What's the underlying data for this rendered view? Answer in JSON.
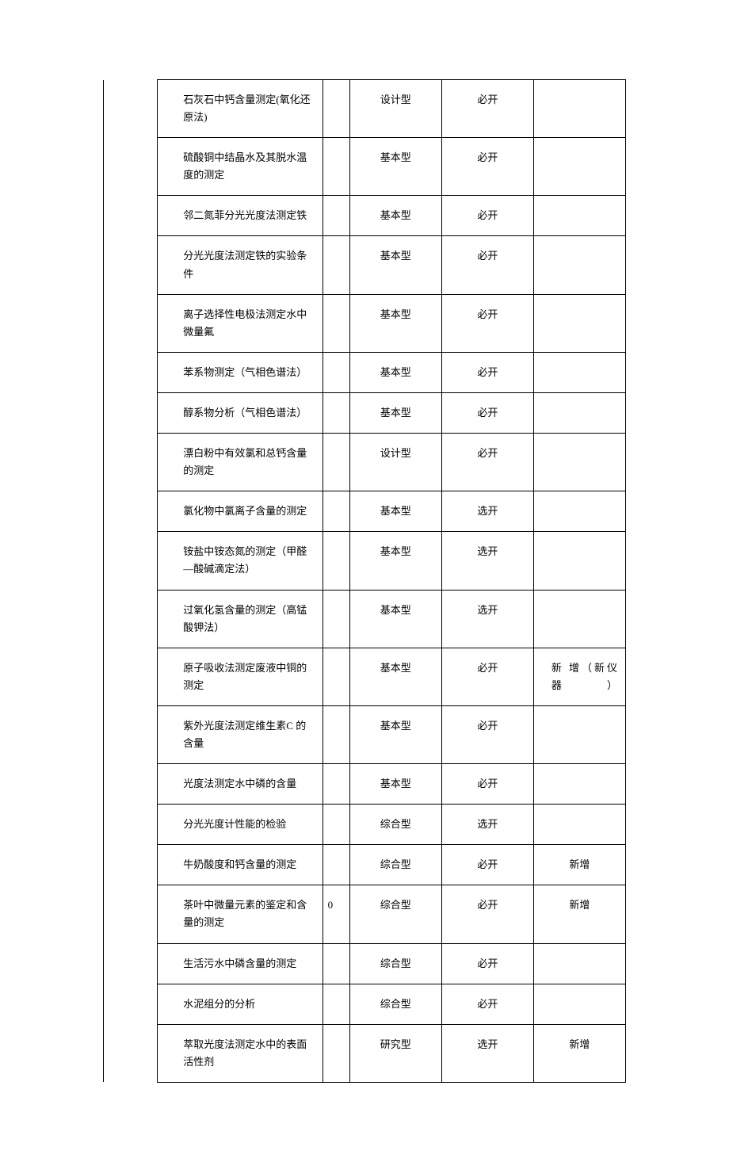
{
  "table": {
    "columns": {
      "widths": [
        "10%",
        "30.5%",
        "5%",
        "17%",
        "17%",
        "17%"
      ]
    },
    "rows": [
      {
        "name": "石灰石中钙含量测定(氧化还原法)",
        "col3": "",
        "type": "设计型",
        "status": "必开",
        "note": ""
      },
      {
        "name": "硫酸铜中结晶水及其脱水温度的测定",
        "col3": "",
        "type": "基本型",
        "status": "必开",
        "note": ""
      },
      {
        "name": "邻二氮菲分光光度法测定铁",
        "col3": "",
        "type": "基本型",
        "status": "必开",
        "note": ""
      },
      {
        "name": "分光光度法测定铁的实验条件",
        "col3": "",
        "type": "基本型",
        "status": "必开",
        "note": ""
      },
      {
        "name": "离子选择性电极法测定水中微量氟",
        "col3": "",
        "type": "基本型",
        "status": "必开",
        "note": ""
      },
      {
        "name": "苯系物测定（气相色谱法）",
        "col3": "",
        "type": "基本型",
        "status": "必开",
        "note": ""
      },
      {
        "name": "醇系物分析（气相色谱法）",
        "col3": "",
        "type": "基本型",
        "status": "必开",
        "note": ""
      },
      {
        "name": "漂白粉中有效氯和总钙含量的测定",
        "col3": "",
        "type": "设计型",
        "status": "必开",
        "note": ""
      },
      {
        "name": "氯化物中氯离子含量的测定",
        "col3": "",
        "type": "基本型",
        "status": "选开",
        "note": ""
      },
      {
        "name": "铵盐中铵态氮的测定（甲醛—酸碱滴定法）",
        "col3": "",
        "type": "基本型",
        "status": "选开",
        "note": ""
      },
      {
        "name": "过氧化氢含量的测定（高锰酸钾法）",
        "col3": "",
        "type": "基本型",
        "status": "选开",
        "note": ""
      },
      {
        "name": "原子吸收法测定废液中铜的测定",
        "col3": "",
        "type": "基本型",
        "status": "必开",
        "note": "新 增（新仪器）",
        "noteJustify": true
      },
      {
        "name": "紫外光度法测定维生素C 的含量",
        "col3": "",
        "type": "基本型",
        "status": "必开",
        "note": ""
      },
      {
        "name": "光度法测定水中磷的含量",
        "col3": "",
        "type": "基本型",
        "status": "必开",
        "note": ""
      },
      {
        "name": "分光光度计性能的检验",
        "col3": "",
        "type": "综合型",
        "status": "选开",
        "note": ""
      },
      {
        "name": "牛奶酸度和钙含量的测定",
        "col3": "",
        "type": "综合型",
        "status": "必开",
        "note": "新增"
      },
      {
        "name": "茶叶中微量元素的鉴定和含量的测定",
        "col3": "0",
        "type": "综合型",
        "status": "必开",
        "note": "新增"
      },
      {
        "name": "生活污水中磷含量的测定",
        "col3": "",
        "type": "综合型",
        "status": "必开",
        "note": ""
      },
      {
        "name": "水泥组分的分析",
        "col3": "",
        "type": "综合型",
        "status": "必开",
        "note": ""
      },
      {
        "name": "萃取光度法测定水中的表面活性剂",
        "col3": "",
        "type": "研究型",
        "status": "选开",
        "note": "新增"
      }
    ]
  },
  "styling": {
    "background_color": "#ffffff",
    "border_color": "#000000",
    "text_color": "#000000",
    "font_family": "SimSun",
    "cell_fontsize": 13,
    "line_height": 1.7
  }
}
